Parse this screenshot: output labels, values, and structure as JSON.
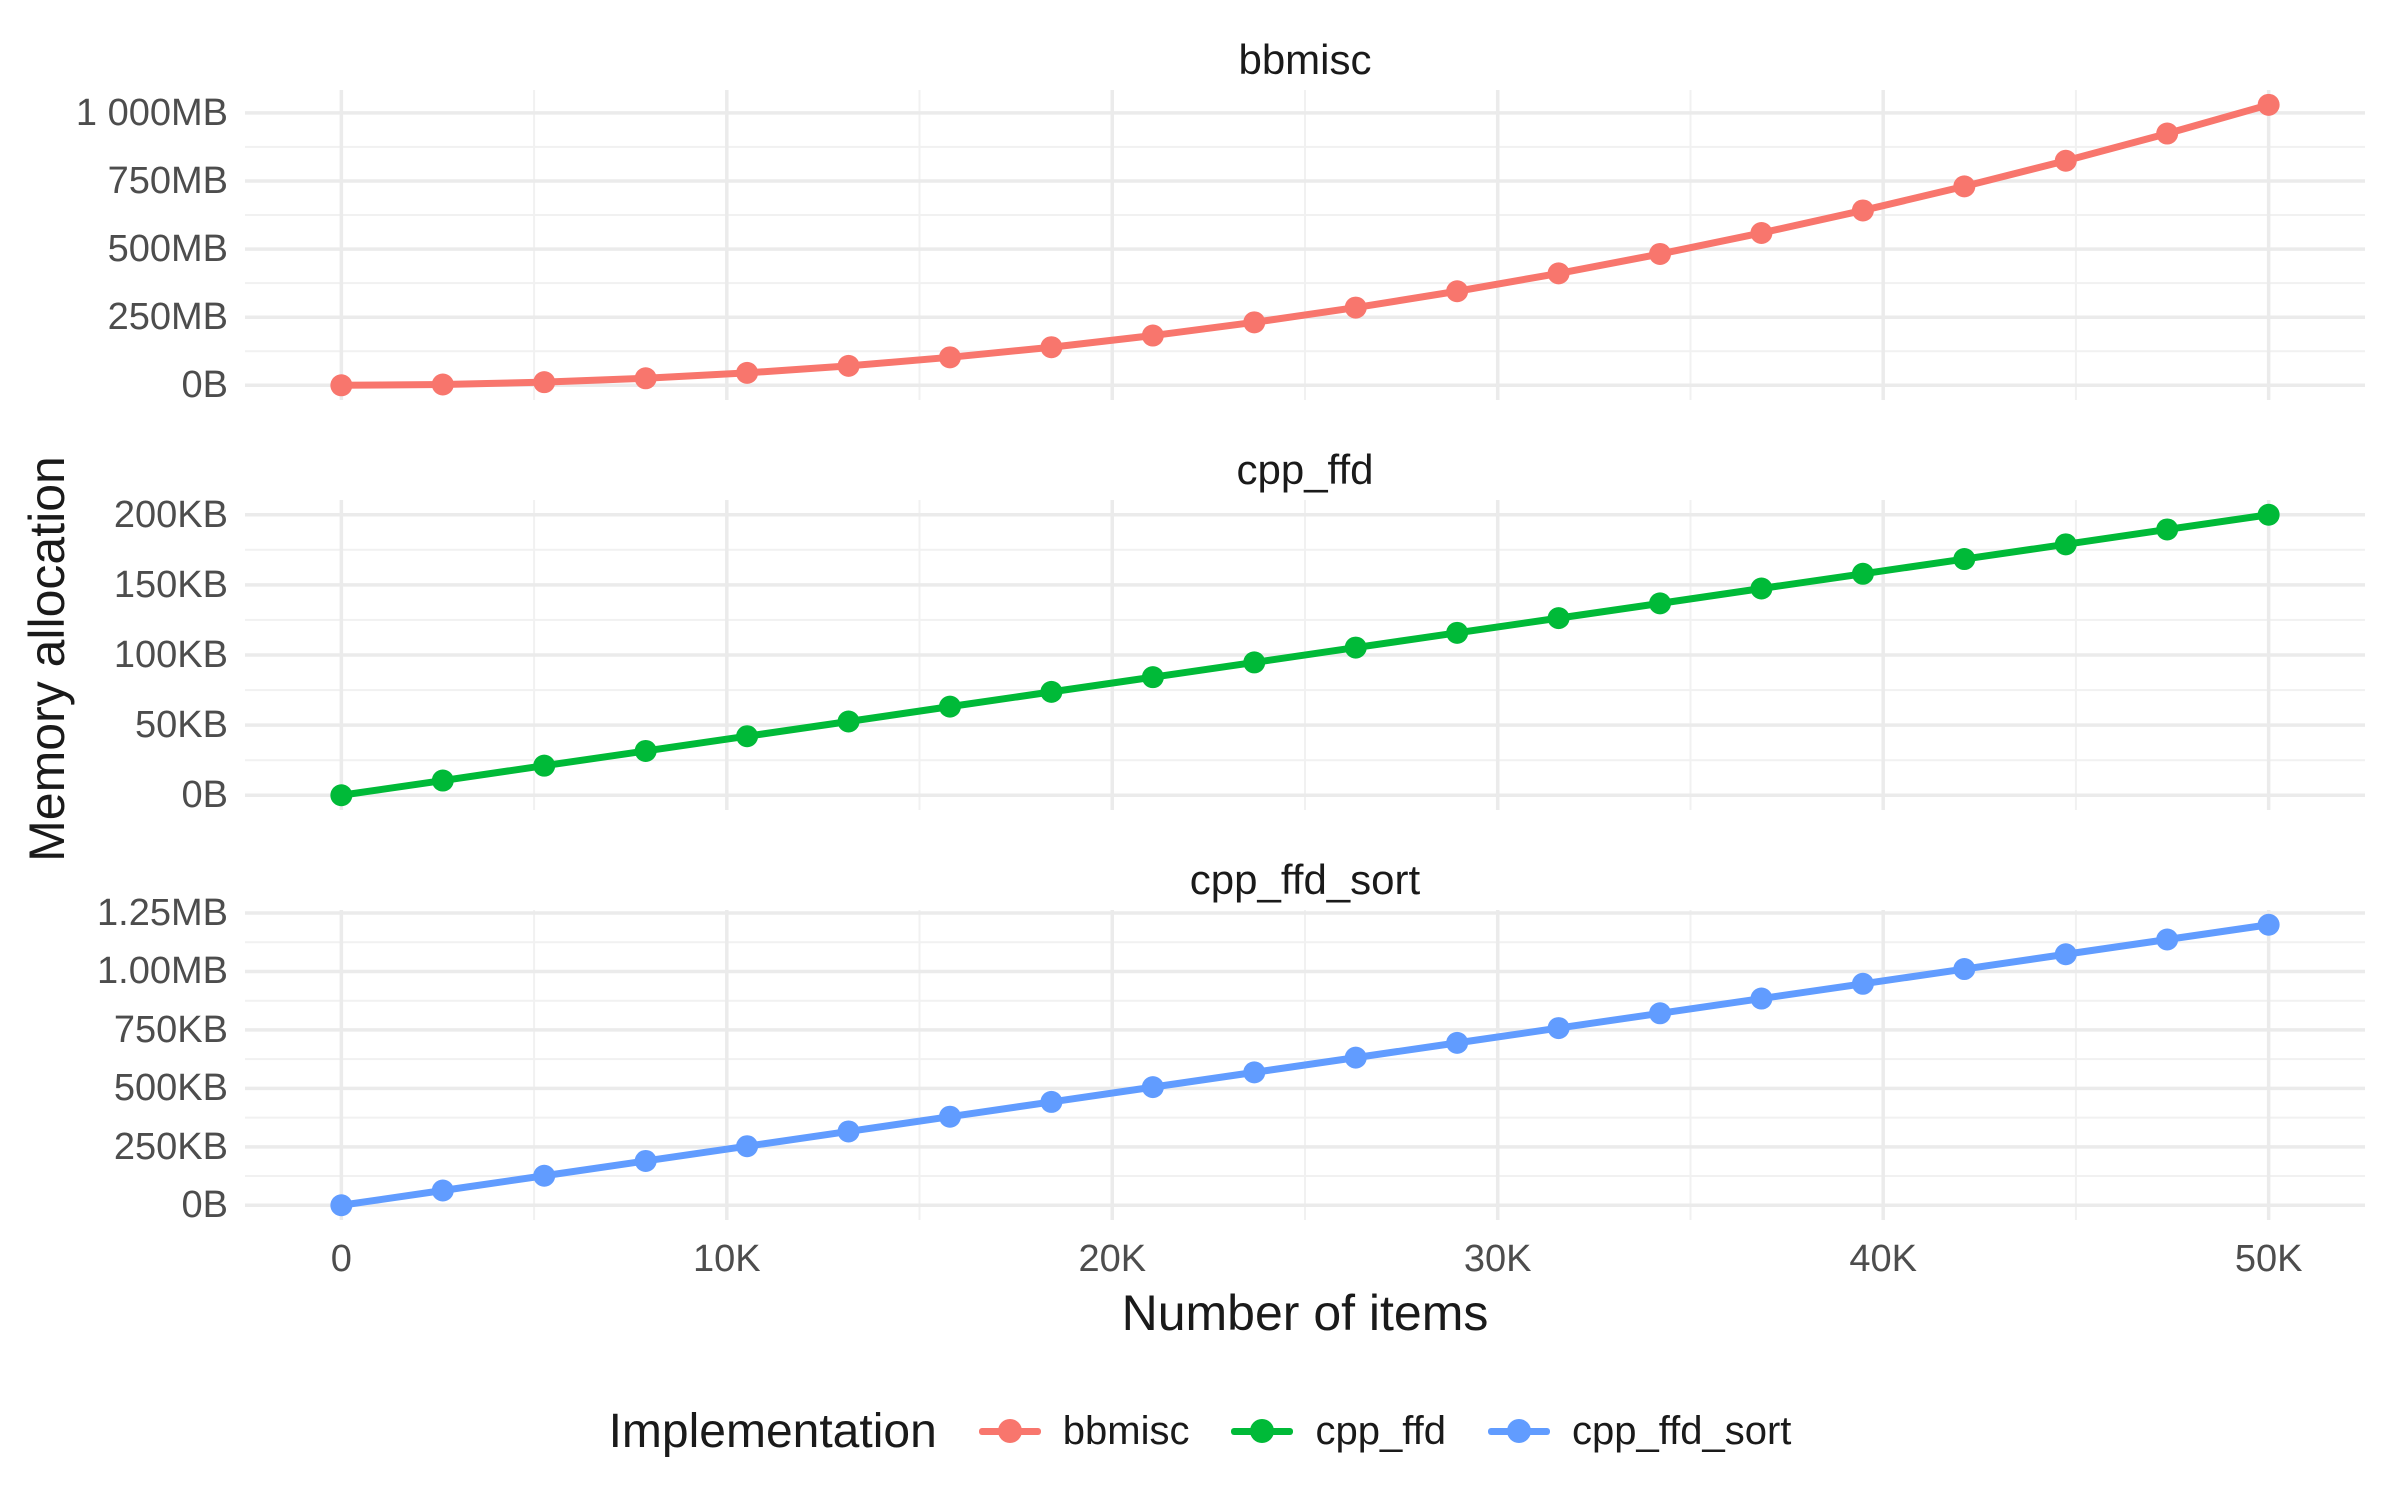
{
  "figure": {
    "y_axis_title": "Memory allocation",
    "x_axis_title": "Number of items",
    "background_color": "#FFFFFF",
    "grid_major_color": "#EBEBEB",
    "grid_minor_color": "#F1F1F1",
    "tick_label_color": "#4D4D4D",
    "text_color": "#1A1A1A"
  },
  "legend": {
    "title": "Implementation",
    "position": "bottom",
    "items": [
      {
        "label": "bbmisc",
        "color": "#F8766D",
        "marker": "line-with-point"
      },
      {
        "label": "cpp_ffd",
        "color": "#00BA38",
        "marker": "line-with-point"
      },
      {
        "label": "cpp_ffd_sort",
        "color": "#619CFF",
        "marker": "line-with-point"
      }
    ]
  },
  "chart_data": {
    "type": "line",
    "faceted": true,
    "grid": true,
    "x": [
      0,
      2632,
      5263,
      7895,
      10526,
      13158,
      15789,
      18421,
      21053,
      23684,
      26316,
      28947,
      31579,
      34211,
      36842,
      39474,
      42105,
      44737,
      47368,
      50000
    ],
    "x_axis": {
      "ticks": [
        0,
        10000,
        20000,
        30000,
        40000,
        50000
      ],
      "tick_labels": [
        "0",
        "10K",
        "20K",
        "30K",
        "40K",
        "50K"
      ],
      "minor_ticks": [
        5000,
        15000,
        25000,
        35000,
        45000
      ],
      "range": [
        -2500,
        52500
      ]
    },
    "panels": [
      {
        "title": "bbmisc",
        "series": "bbmisc",
        "color": "#F8766D",
        "unit": "MB",
        "values": [
          0,
          2.9,
          11.4,
          25.7,
          45.6,
          71.3,
          102.7,
          139.8,
          182.6,
          231.1,
          285.3,
          345.2,
          410.8,
          482.1,
          559.1,
          641.8,
          730.2,
          824.3,
          924.1,
          1029.6
        ],
        "y_ticks": [
          0,
          250,
          500,
          750,
          1000
        ],
        "y_tick_labels": [
          "0B",
          "250MB",
          "500MB",
          "750MB",
          "1 000MB"
        ],
        "y_minor_ticks": [
          125,
          375,
          625,
          875
        ],
        "y_range": [
          -54,
          1084
        ]
      },
      {
        "title": "cpp_ffd",
        "series": "cpp_ffd",
        "color": "#00BA38",
        "unit": "KB",
        "values": [
          0,
          10.5,
          21.1,
          31.6,
          42.1,
          52.6,
          63.2,
          73.7,
          84.2,
          94.7,
          105.3,
          115.8,
          126.3,
          136.8,
          147.4,
          157.9,
          168.4,
          178.9,
          189.5,
          200
        ],
        "y_ticks": [
          0,
          50,
          100,
          150,
          200
        ],
        "y_tick_labels": [
          "0B",
          "50KB",
          "100KB",
          "150KB",
          "200KB"
        ],
        "y_minor_ticks": [
          25,
          75,
          125,
          175
        ],
        "y_range": [
          -10.5,
          210.5
        ]
      },
      {
        "title": "cpp_ffd_sort",
        "series": "cpp_ffd_sort",
        "color": "#619CFF",
        "unit": "KB",
        "values": [
          0,
          63.2,
          126.3,
          189.5,
          252.6,
          315.8,
          378.9,
          442.1,
          505.3,
          568.4,
          631.6,
          694.7,
          757.9,
          821.1,
          884.2,
          947.4,
          1010.5,
          1073.7,
          1136.8,
          1200
        ],
        "y_ticks": [
          0,
          250,
          500,
          750,
          1000,
          1250
        ],
        "y_tick_labels": [
          "0B",
          "250KB",
          "500KB",
          "750KB",
          "1.00MB",
          "1.25MB"
        ],
        "y_minor_ticks": [
          125,
          375,
          625,
          875,
          1125
        ],
        "y_range": [
          -63,
          1263
        ]
      }
    ]
  }
}
